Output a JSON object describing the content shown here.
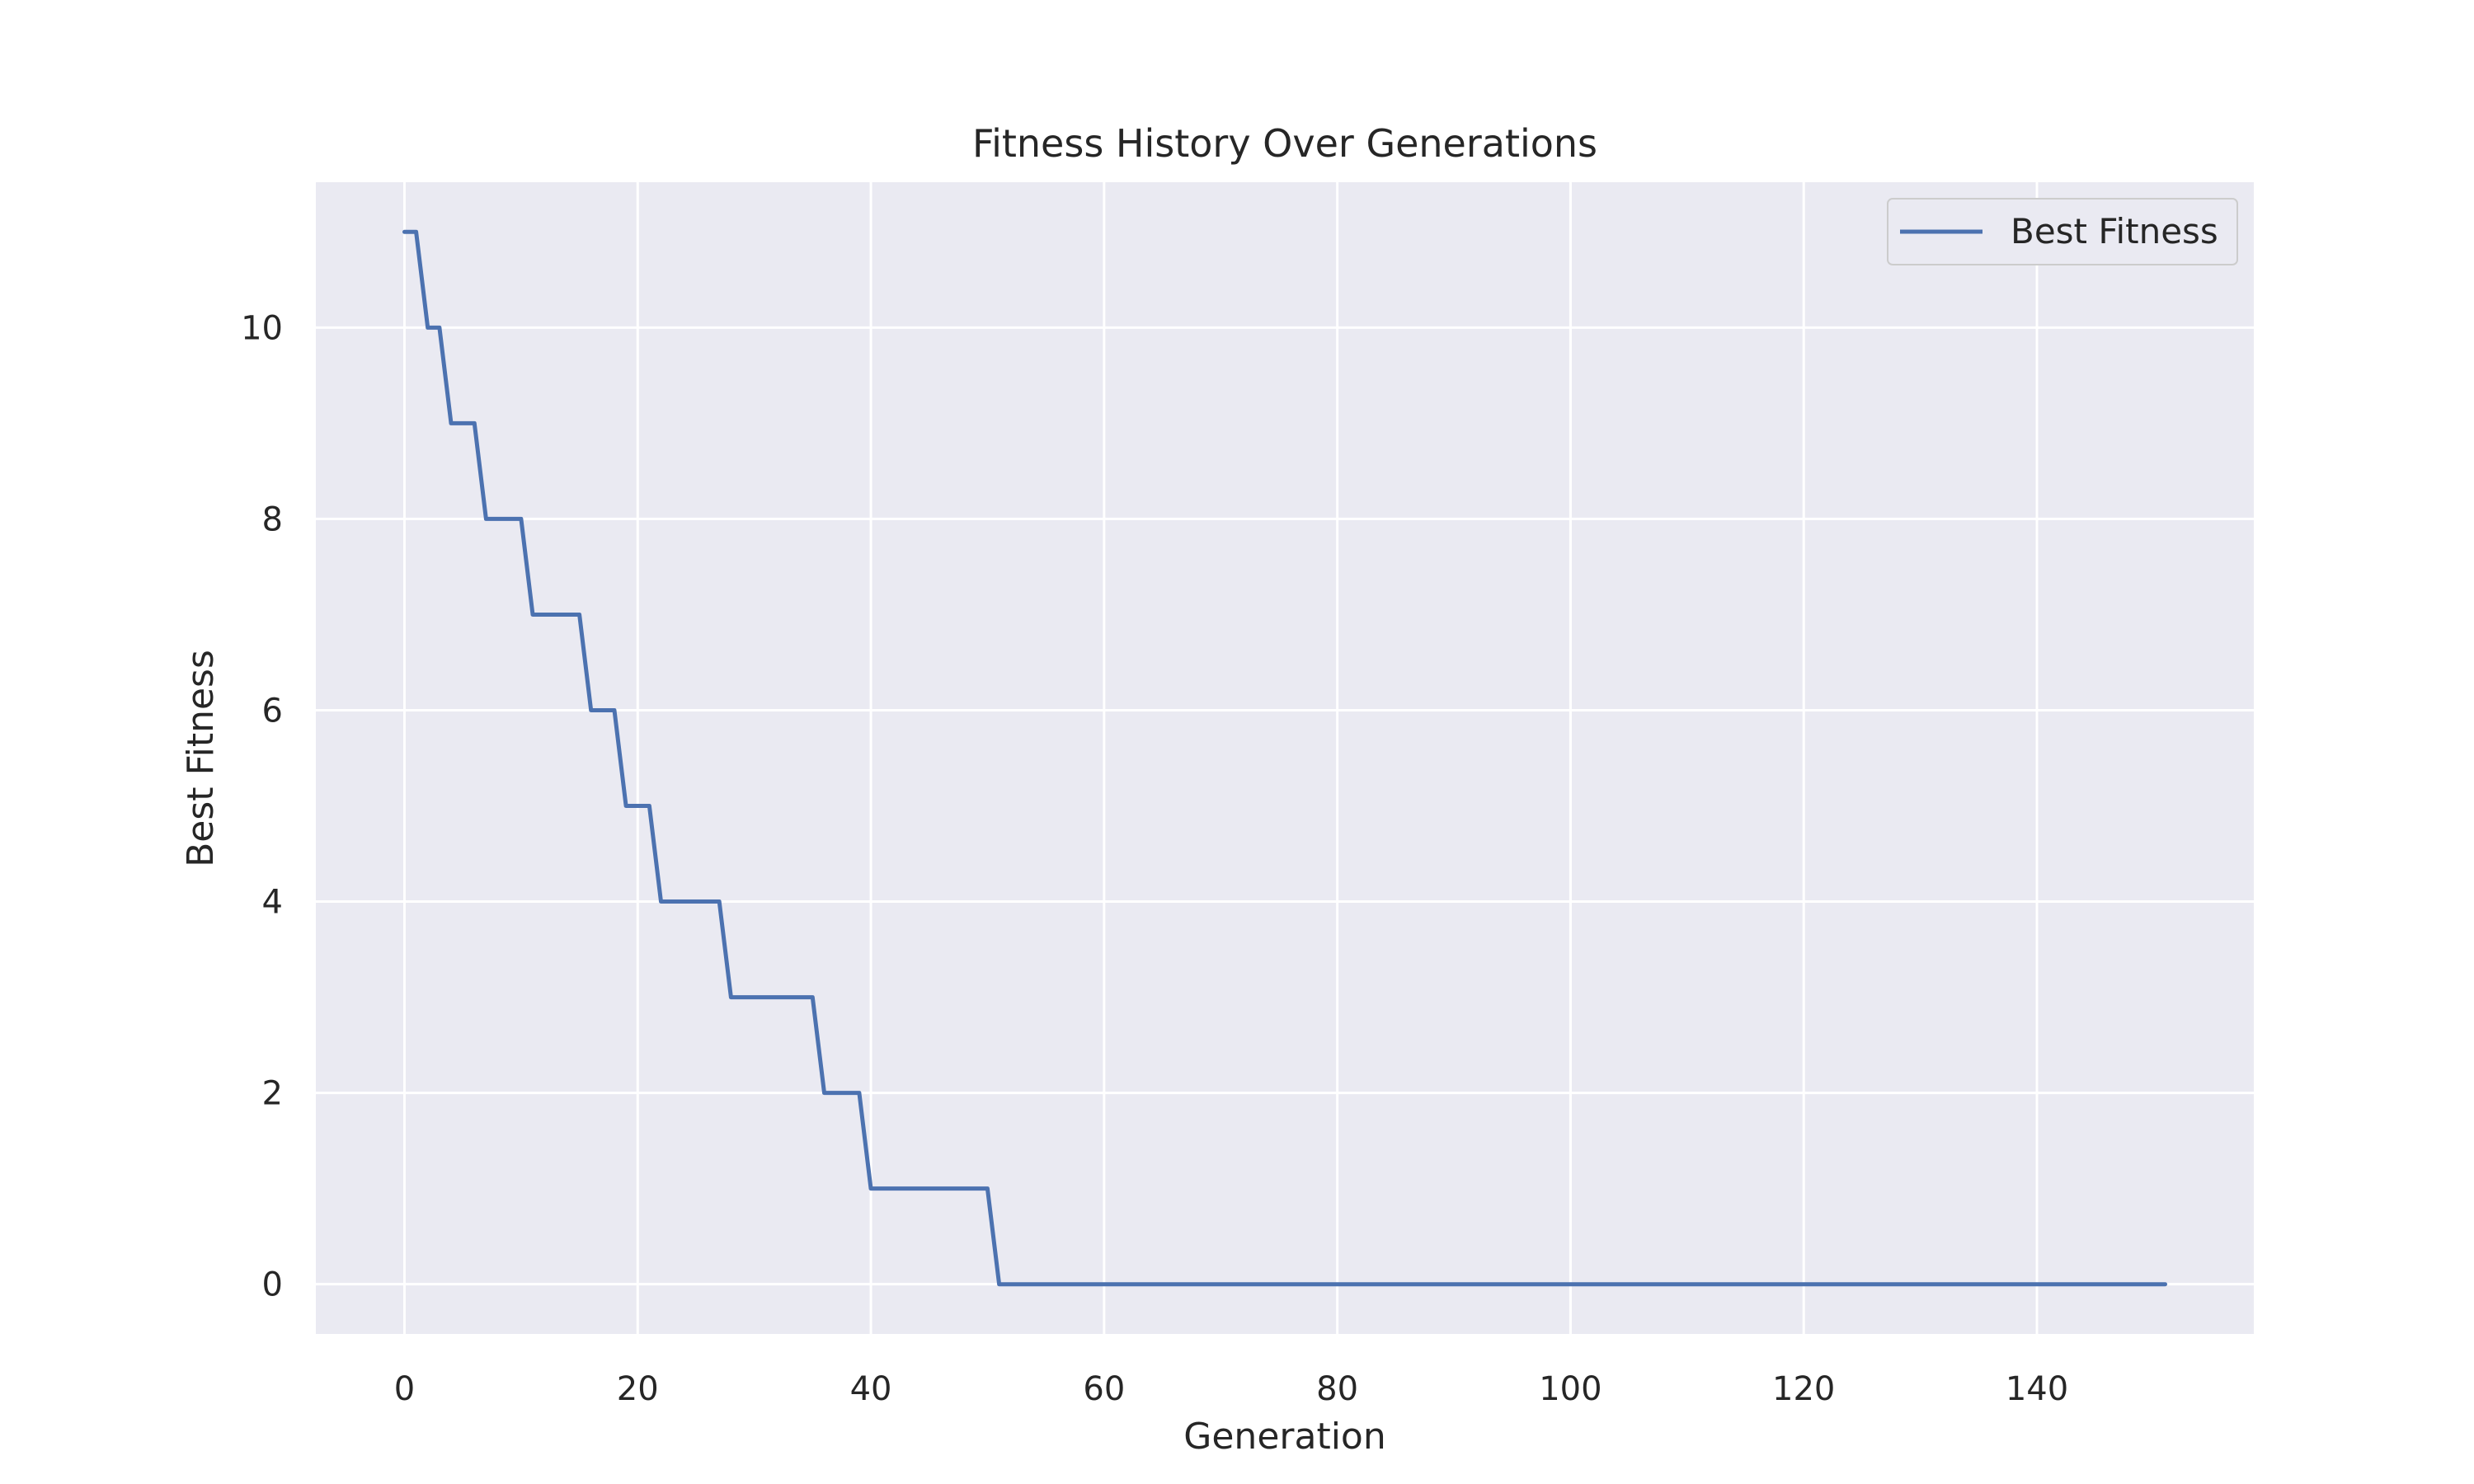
{
  "chart_data": {
    "type": "line",
    "title": "Fitness History Over Generations",
    "xlabel": "Generation",
    "ylabel": "Best Fitness",
    "xlim": [
      -7.6,
      158.6
    ],
    "ylim": [
      -0.52,
      11.52
    ],
    "xticks": [
      0,
      20,
      40,
      60,
      80,
      100,
      120,
      140
    ],
    "yticks": [
      0,
      2,
      4,
      6,
      8,
      10
    ],
    "grid": true,
    "legend_position": "top-right",
    "series": [
      {
        "name": "Best Fitness",
        "color": "#4c72b0",
        "x": [
          0,
          1,
          2,
          3,
          4,
          6,
          7,
          10,
          11,
          15,
          16,
          18,
          19,
          21,
          22,
          27,
          28,
          35,
          36,
          39,
          40,
          50,
          51,
          151
        ],
        "y": [
          11,
          11,
          10,
          10,
          9,
          9,
          8,
          8,
          7,
          7,
          6,
          6,
          5,
          5,
          4,
          4,
          3,
          3,
          2,
          2,
          1,
          1,
          0,
          0
        ]
      }
    ]
  }
}
